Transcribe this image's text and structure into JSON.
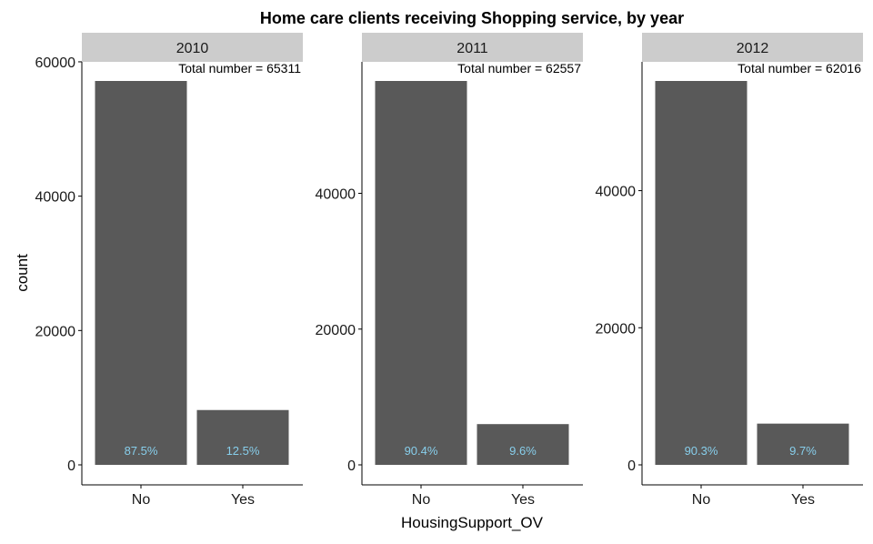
{
  "title": "Home care clients receiving Shopping service, by year",
  "ylabel": "count",
  "xlabel": "HousingSupport_OV",
  "colors": {
    "bar": "#595959",
    "strip": "#cccccc",
    "bar_label": "#87ceeb",
    "axis": "#000000"
  },
  "chart_data": [
    {
      "type": "bar",
      "panel": "2010",
      "annotation": "Total number = 65311",
      "categories": [
        "No",
        "Yes"
      ],
      "values": [
        57150,
        8161
      ],
      "bar_labels": [
        "87.5%",
        "12.5%"
      ],
      "yticks": [
        0,
        20000,
        40000,
        60000
      ],
      "ytick_labels": [
        "0",
        "20000",
        "40000",
        "60000"
      ],
      "ylim": [
        0,
        60000
      ],
      "grid": false
    },
    {
      "type": "bar",
      "panel": "2011",
      "annotation": "Total number = 62557",
      "categories": [
        "No",
        "Yes"
      ],
      "values": [
        56553,
        6004
      ],
      "bar_labels": [
        "90.4%",
        "9.6%"
      ],
      "yticks": [
        0,
        20000,
        40000
      ],
      "ytick_labels": [
        "0",
        "20000",
        "40000"
      ],
      "ylim": [
        0,
        56553
      ],
      "grid": false
    },
    {
      "type": "bar",
      "panel": "2012",
      "annotation": "Total number = 62016",
      "categories": [
        "No",
        "Yes"
      ],
      "values": [
        56000,
        6016
      ],
      "bar_labels": [
        "90.3%",
        "9.7%"
      ],
      "yticks": [
        0,
        20000,
        40000
      ],
      "ytick_labels": [
        "0",
        "20000",
        "40000"
      ],
      "ylim": [
        0,
        56000
      ],
      "grid": false
    }
  ]
}
